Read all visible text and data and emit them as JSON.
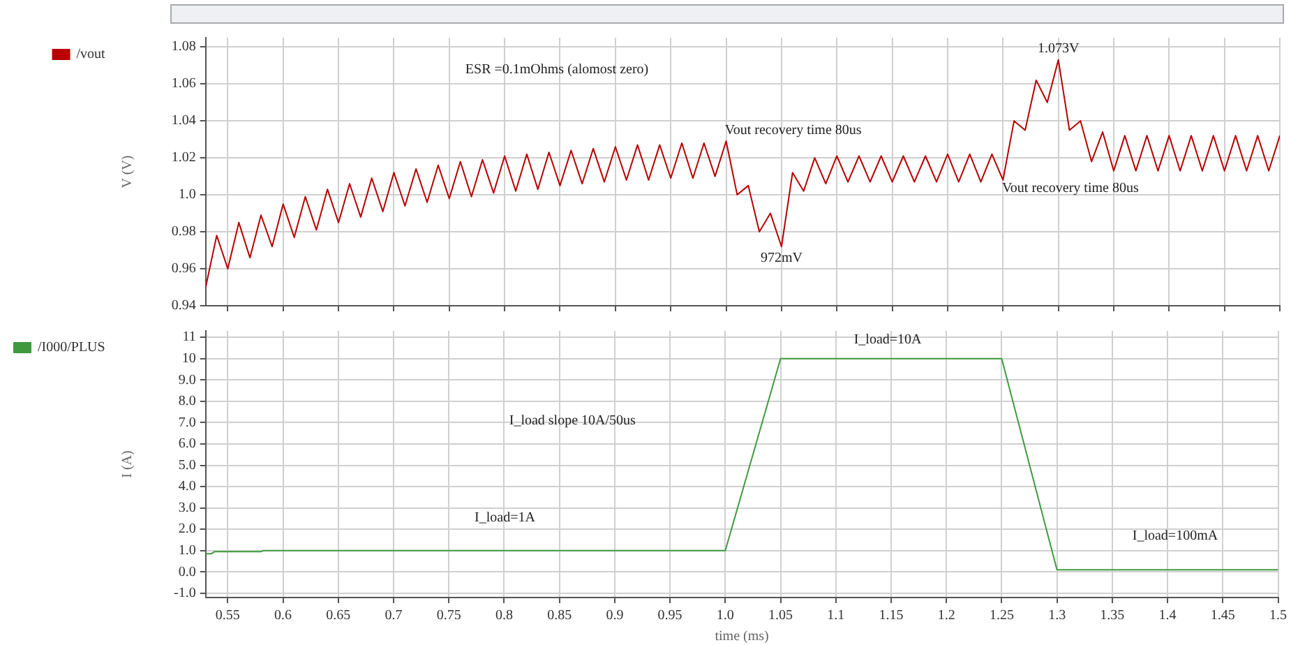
{
  "chart_data": [
    {
      "type": "line",
      "ylabel": "V (V)",
      "legend": "left",
      "grid": true,
      "tick_labels": "y",
      "marker": "none",
      "xlim": [
        0.53,
        1.5
      ],
      "xticks": [
        {
          "value": 0.55,
          "label": null
        },
        {
          "value": 0.6,
          "label": null
        },
        {
          "value": 0.65,
          "label": null
        },
        {
          "value": 0.7,
          "label": null
        },
        {
          "value": 0.75,
          "label": null
        },
        {
          "value": 0.8,
          "label": null
        },
        {
          "value": 0.85,
          "label": null
        },
        {
          "value": 0.9,
          "label": null
        },
        {
          "value": 0.95,
          "label": null
        },
        {
          "value": 1,
          "label": null
        },
        {
          "value": 1.05,
          "label": null
        },
        {
          "value": 1.1,
          "label": null
        },
        {
          "value": 1.15,
          "label": null
        },
        {
          "value": 1.2,
          "label": null
        },
        {
          "value": 1.25,
          "label": null
        },
        {
          "value": 1.3,
          "label": null
        },
        {
          "value": 1.35,
          "label": null
        },
        {
          "value": 1.4,
          "label": null
        },
        {
          "value": 1.45,
          "label": null
        },
        {
          "value": 1.5,
          "label": null
        }
      ],
      "ylim": [
        0.94,
        1.085
      ],
      "yticks": [
        0.94,
        0.96,
        0.98,
        {
          "value": 1,
          "label": "1.0"
        },
        1.02,
        1.04,
        1.06,
        1.08
      ],
      "series": [
        {
          "name": "/vout",
          "color": "#b80000",
          "x": [
            0.53,
            0.54,
            0.55,
            0.56,
            0.57,
            0.58,
            0.59,
            0.6,
            0.61,
            0.62,
            0.63,
            0.64,
            0.65,
            0.66,
            0.67,
            0.68,
            0.69,
            0.7,
            0.71,
            0.72,
            0.73,
            0.74,
            0.75,
            0.76,
            0.77,
            0.78,
            0.79,
            0.8,
            0.81,
            0.82,
            0.83,
            0.84,
            0.85,
            0.86,
            0.87,
            0.88,
            0.89,
            0.9,
            0.91,
            0.92,
            0.93,
            0.94,
            0.95,
            0.96,
            0.97,
            0.98,
            0.99,
            1.0,
            1.01,
            1.02,
            1.03,
            1.04,
            1.05,
            1.06,
            1.07,
            1.08,
            1.09,
            1.1,
            1.11,
            1.12,
            1.13,
            1.14,
            1.15,
            1.16,
            1.17,
            1.18,
            1.19,
            1.2,
            1.21,
            1.22,
            1.23,
            1.24,
            1.25,
            1.26,
            1.27,
            1.28,
            1.29,
            1.3,
            1.31,
            1.32,
            1.33,
            1.34,
            1.35,
            1.36,
            1.37,
            1.38,
            1.39,
            1.4,
            1.41,
            1.42,
            1.43,
            1.44,
            1.45,
            1.46,
            1.47,
            1.48,
            1.49,
            1.5
          ],
          "values": [
            0.95,
            0.978,
            0.96,
            0.985,
            0.966,
            0.989,
            0.972,
            0.995,
            0.977,
            0.999,
            0.981,
            1.003,
            0.985,
            1.006,
            0.988,
            1.009,
            0.991,
            1.012,
            0.994,
            1.014,
            0.996,
            1.016,
            0.998,
            1.018,
            0.999,
            1.019,
            1.001,
            1.021,
            1.002,
            1.022,
            1.003,
            1.023,
            1.005,
            1.024,
            1.006,
            1.025,
            1.007,
            1.026,
            1.008,
            1.027,
            1.008,
            1.027,
            1.009,
            1.028,
            1.009,
            1.028,
            1.01,
            1.029,
            1.0,
            1.005,
            0.98,
            0.99,
            0.972,
            1.012,
            1.002,
            1.02,
            1.006,
            1.021,
            1.007,
            1.021,
            1.007,
            1.021,
            1.007,
            1.021,
            1.007,
            1.021,
            1.007,
            1.022,
            1.007,
            1.022,
            1.007,
            1.022,
            1.008,
            1.04,
            1.035,
            1.062,
            1.05,
            1.073,
            1.035,
            1.04,
            1.018,
            1.034,
            1.013,
            1.032,
            1.013,
            1.032,
            1.013,
            1.032,
            1.013,
            1.032,
            1.013,
            1.032,
            1.013,
            1.032,
            1.013,
            1.032,
            1.013,
            1.032
          ]
        }
      ],
      "annotations": [
        "ESR =0.1mOhms (alomost zero)",
        "Vout recovery time 80us",
        {
          "text": "972mV",
          "x": 1.05,
          "y": 0.972
        },
        {
          "text": "1.073V",
          "x": 1.3,
          "y": 1.073
        },
        "Vout recovery time 80us"
      ]
    },
    {
      "type": "line",
      "xlabel": "time (ms)",
      "ylabel": "I (A)",
      "legend": "left",
      "grid": true,
      "marker": "none",
      "xlim": [
        0.53,
        1.5
      ],
      "xticks": [
        0.55,
        0.6,
        0.65,
        0.7,
        0.75,
        0.8,
        0.85,
        0.9,
        0.95,
        {
          "value": 1,
          "label": "1.0"
        },
        1.05,
        1.1,
        1.15,
        1.2,
        1.25,
        1.3,
        1.35,
        1.4,
        1.45,
        1.5
      ],
      "ylim": [
        -1.2,
        11.3
      ],
      "yticks": [
        {
          "value": -1,
          "label": "-1.0"
        },
        {
          "value": 0,
          "label": "0.0"
        },
        {
          "value": 1,
          "label": "1.0"
        },
        {
          "value": 2,
          "label": "2.0"
        },
        {
          "value": 3,
          "label": "3.0"
        },
        {
          "value": 4,
          "label": "4.0"
        },
        {
          "value": 5,
          "label": "5.0"
        },
        {
          "value": 6,
          "label": "6.0"
        },
        {
          "value": 7,
          "label": "7.0"
        },
        {
          "value": 8,
          "label": "8.0"
        },
        {
          "value": 9,
          "label": "9.0"
        },
        10,
        11
      ],
      "series": [
        {
          "name": "/I000/PLUS",
          "color": "#3f9a3f",
          "x": [
            0.53,
            0.535,
            0.538,
            0.58,
            0.582,
            1.0,
            1.05,
            1.25,
            1.3,
            1.5
          ],
          "values": [
            0.85,
            0.85,
            0.95,
            0.95,
            1.0,
            1.0,
            10,
            10,
            0.1,
            0.1
          ]
        }
      ],
      "annotations": [
        "I_load slope 10A/50us",
        "I_load=1A",
        "I_load=10A",
        "I_load=100mA"
      ]
    }
  ]
}
